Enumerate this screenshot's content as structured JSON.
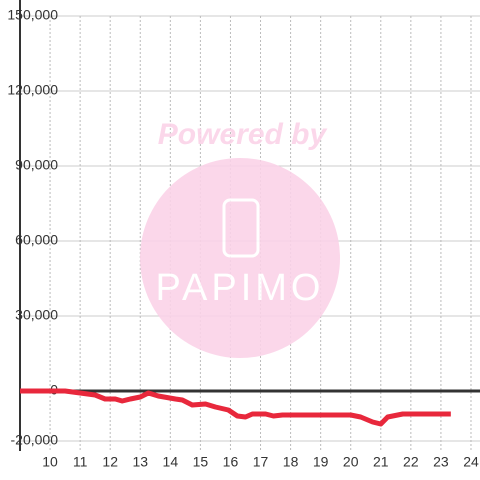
{
  "chart_data": {
    "type": "line",
    "watermark": "Powered by",
    "logo_text": "PAPIMO",
    "x": [
      9.0,
      10.5,
      11.0,
      11.5,
      11.83,
      12.17,
      12.4,
      12.67,
      13.0,
      13.27,
      13.6,
      14.17,
      14.4,
      14.73,
      15.17,
      15.5,
      15.93,
      16.23,
      16.5,
      16.73,
      17.17,
      17.43,
      17.73,
      20.0,
      20.33,
      20.73,
      21.0,
      21.23,
      21.73,
      23.33
    ],
    "series": [
      {
        "color": "#e8283c",
        "values": [
          0,
          0,
          -800,
          -1600,
          -3200,
          -3200,
          -4000,
          -3200,
          -2400,
          -800,
          -2000,
          -3200,
          -3600,
          -5600,
          -5200,
          -6400,
          -7600,
          -10000,
          -10400,
          -9200,
          -9200,
          -10000,
          -9600,
          -9600,
          -10400,
          -12400,
          -13200,
          -10400,
          -9200,
          -9200
        ]
      }
    ],
    "xlim": [
      9,
      24.3
    ],
    "xticks": [
      10,
      11,
      12,
      13,
      14,
      15,
      16,
      17,
      18,
      19,
      20,
      21,
      22,
      23,
      24
    ],
    "ylim": [
      -24000,
      150000
    ],
    "yticks": [
      {
        "value": 150000,
        "label": "150,000"
      },
      {
        "value": 120000,
        "label": "120,000"
      },
      {
        "value": 90000,
        "label": "90,000"
      },
      {
        "value": 60000,
        "label": "60,000"
      },
      {
        "value": 30000,
        "label": "30,000"
      },
      0,
      {
        "value": -20000,
        "label": "-20,000"
      }
    ],
    "grid": true
  }
}
